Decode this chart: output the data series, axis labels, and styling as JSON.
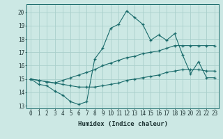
{
  "background_color": "#cce8e4",
  "grid_color": "#aacfcb",
  "line_color": "#1a6b6b",
  "xlabel": "Humidex (Indice chaleur)",
  "xlim": [
    -0.5,
    23.5
  ],
  "ylim": [
    12.8,
    20.6
  ],
  "yticks": [
    13,
    14,
    15,
    16,
    17,
    18,
    19,
    20
  ],
  "xticks": [
    0,
    1,
    2,
    3,
    4,
    5,
    6,
    7,
    8,
    9,
    10,
    11,
    12,
    13,
    14,
    15,
    16,
    17,
    18,
    19,
    20,
    21,
    22,
    23
  ],
  "series": [
    {
      "x": [
        0,
        1,
        2,
        3,
        4,
        5,
        6,
        7,
        8,
        9,
        10,
        11,
        12,
        13,
        14,
        15,
        16,
        17,
        18,
        19,
        20,
        21,
        22,
        23
      ],
      "y": [
        15.0,
        14.6,
        14.5,
        14.1,
        13.8,
        13.3,
        13.1,
        13.3,
        16.5,
        17.3,
        18.8,
        19.1,
        20.1,
        19.6,
        19.1,
        17.9,
        18.3,
        17.9,
        18.4,
        16.8,
        15.4,
        16.3,
        15.1,
        15.1
      ]
    },
    {
      "x": [
        0,
        1,
        2,
        3,
        4,
        5,
        6,
        7,
        8,
        9,
        10,
        11,
        12,
        13,
        14,
        15,
        16,
        17,
        18,
        19,
        20,
        21,
        22,
        23
      ],
      "y": [
        15.0,
        14.9,
        14.8,
        14.7,
        14.9,
        15.1,
        15.3,
        15.5,
        15.7,
        16.0,
        16.2,
        16.4,
        16.6,
        16.7,
        16.9,
        17.0,
        17.1,
        17.3,
        17.5,
        17.5,
        17.5,
        17.5,
        17.5,
        17.5
      ]
    },
    {
      "x": [
        0,
        1,
        2,
        3,
        4,
        5,
        6,
        7,
        8,
        9,
        10,
        11,
        12,
        13,
        14,
        15,
        16,
        17,
        18,
        19,
        20,
        21,
        22,
        23
      ],
      "y": [
        15.0,
        14.9,
        14.8,
        14.7,
        14.6,
        14.5,
        14.4,
        14.4,
        14.4,
        14.5,
        14.6,
        14.7,
        14.9,
        15.0,
        15.1,
        15.2,
        15.3,
        15.5,
        15.6,
        15.7,
        15.7,
        15.7,
        15.6,
        15.6
      ]
    }
  ]
}
